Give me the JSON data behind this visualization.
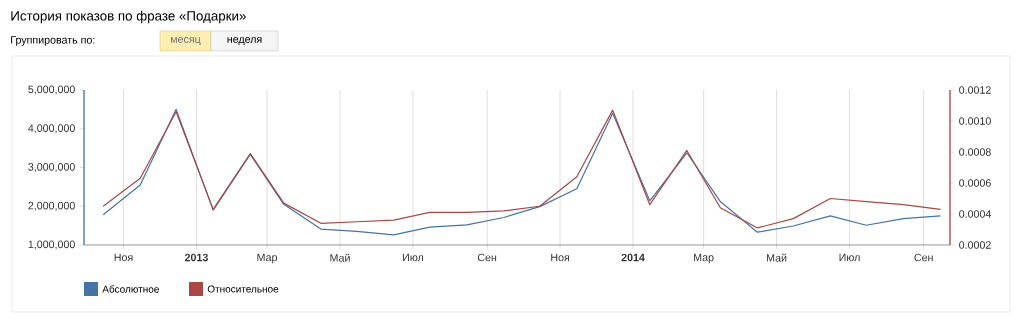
{
  "chart_data": {
    "type": "line",
    "title": "История показов по фразе «Подарки»",
    "annotations": [
      "Группировать по:",
      "месяц",
      "неделя"
    ],
    "x": [
      "2012-10-15",
      "2012-11-15",
      "2012-12-15",
      "2013-01-15",
      "2013-02-15",
      "2013-03-15",
      "2013-04-15",
      "2013-05-15",
      "2013-06-15",
      "2013-07-15",
      "2013-08-15",
      "2013-09-15",
      "2013-10-15",
      "2013-11-15",
      "2013-12-15",
      "2014-01-15",
      "2014-02-15",
      "2014-03-15",
      "2014-04-15",
      "2014-05-15",
      "2014-06-15",
      "2014-07-15",
      "2014-08-15",
      "2014-09-15"
    ],
    "series": [
      {
        "name": "Абсолютное",
        "color": "#4572a7",
        "values": [
          1780000,
          2550000,
          4500000,
          1900000,
          3340000,
          2050000,
          1410000,
          1350000,
          1260000,
          1460000,
          1520000,
          1710000,
          1990000,
          2450000,
          4400000,
          2140000,
          3380000,
          2120000,
          1330000,
          1490000,
          1750000,
          1510000,
          1680000,
          1750000
        ]
      },
      {
        "name": "Относительное",
        "color": "#aa4643",
        "axis": "y2",
        "values": [
          0.00045,
          0.00063,
          0.00106,
          0.00043,
          0.00079,
          0.00047,
          0.00034,
          0.00035,
          0.00036,
          0.00041,
          0.00041,
          0.00042,
          0.00045,
          0.00064,
          0.00107,
          0.00046,
          0.00081,
          0.00044,
          0.00031,
          0.00037,
          0.0005,
          0.00048,
          0.00046,
          0.00043
        ]
      }
    ],
    "xlim": [
      "2012-09-29",
      "2014-09-23"
    ],
    "xticks": [
      {
        "value": "2012-11-01",
        "label": "Ноя"
      },
      {
        "value": "2013-01-01",
        "label": "2013"
      },
      {
        "value": "2013-03-01",
        "label": "Мар"
      },
      {
        "value": "2013-05-01",
        "label": "Май"
      },
      {
        "value": "2013-07-01",
        "label": "Июл"
      },
      {
        "value": "2013-09-01",
        "label": "Сен"
      },
      {
        "value": "2013-11-01",
        "label": "Ноя"
      },
      {
        "value": "2014-01-01",
        "label": "2014"
      },
      {
        "value": "2014-03-01",
        "label": "Мар"
      },
      {
        "value": "2014-05-01",
        "label": "Май"
      },
      {
        "value": "2014-07-01",
        "label": "Июл"
      },
      {
        "value": "2014-09-01",
        "label": "Сен"
      }
    ],
    "ylim": [
      1000000,
      5000000
    ],
    "yticks": [
      {
        "value": 1000000,
        "label": "1,000,000"
      },
      {
        "value": 2000000,
        "label": "2,000,000"
      },
      {
        "value": 3000000,
        "label": "3,000,000"
      },
      {
        "value": 4000000,
        "label": "4,000,000"
      },
      {
        "value": 5000000,
        "label": "5,000,000"
      }
    ],
    "y2lim": [
      0.0002,
      0.0012
    ],
    "y2ticks": [
      {
        "value": 0.0002,
        "label": "0.0002"
      },
      {
        "value": 0.0004,
        "label": "0.0004"
      },
      {
        "value": 0.0006,
        "label": "0.0006"
      },
      {
        "value": 0.0008,
        "label": "0.0008"
      },
      {
        "value": 0.001,
        "label": "0.0010"
      },
      {
        "value": 0.0012,
        "label": "0.0012"
      }
    ],
    "grid": "x",
    "legend": "bottom left",
    "marker": "none",
    "line_style": "solid"
  }
}
